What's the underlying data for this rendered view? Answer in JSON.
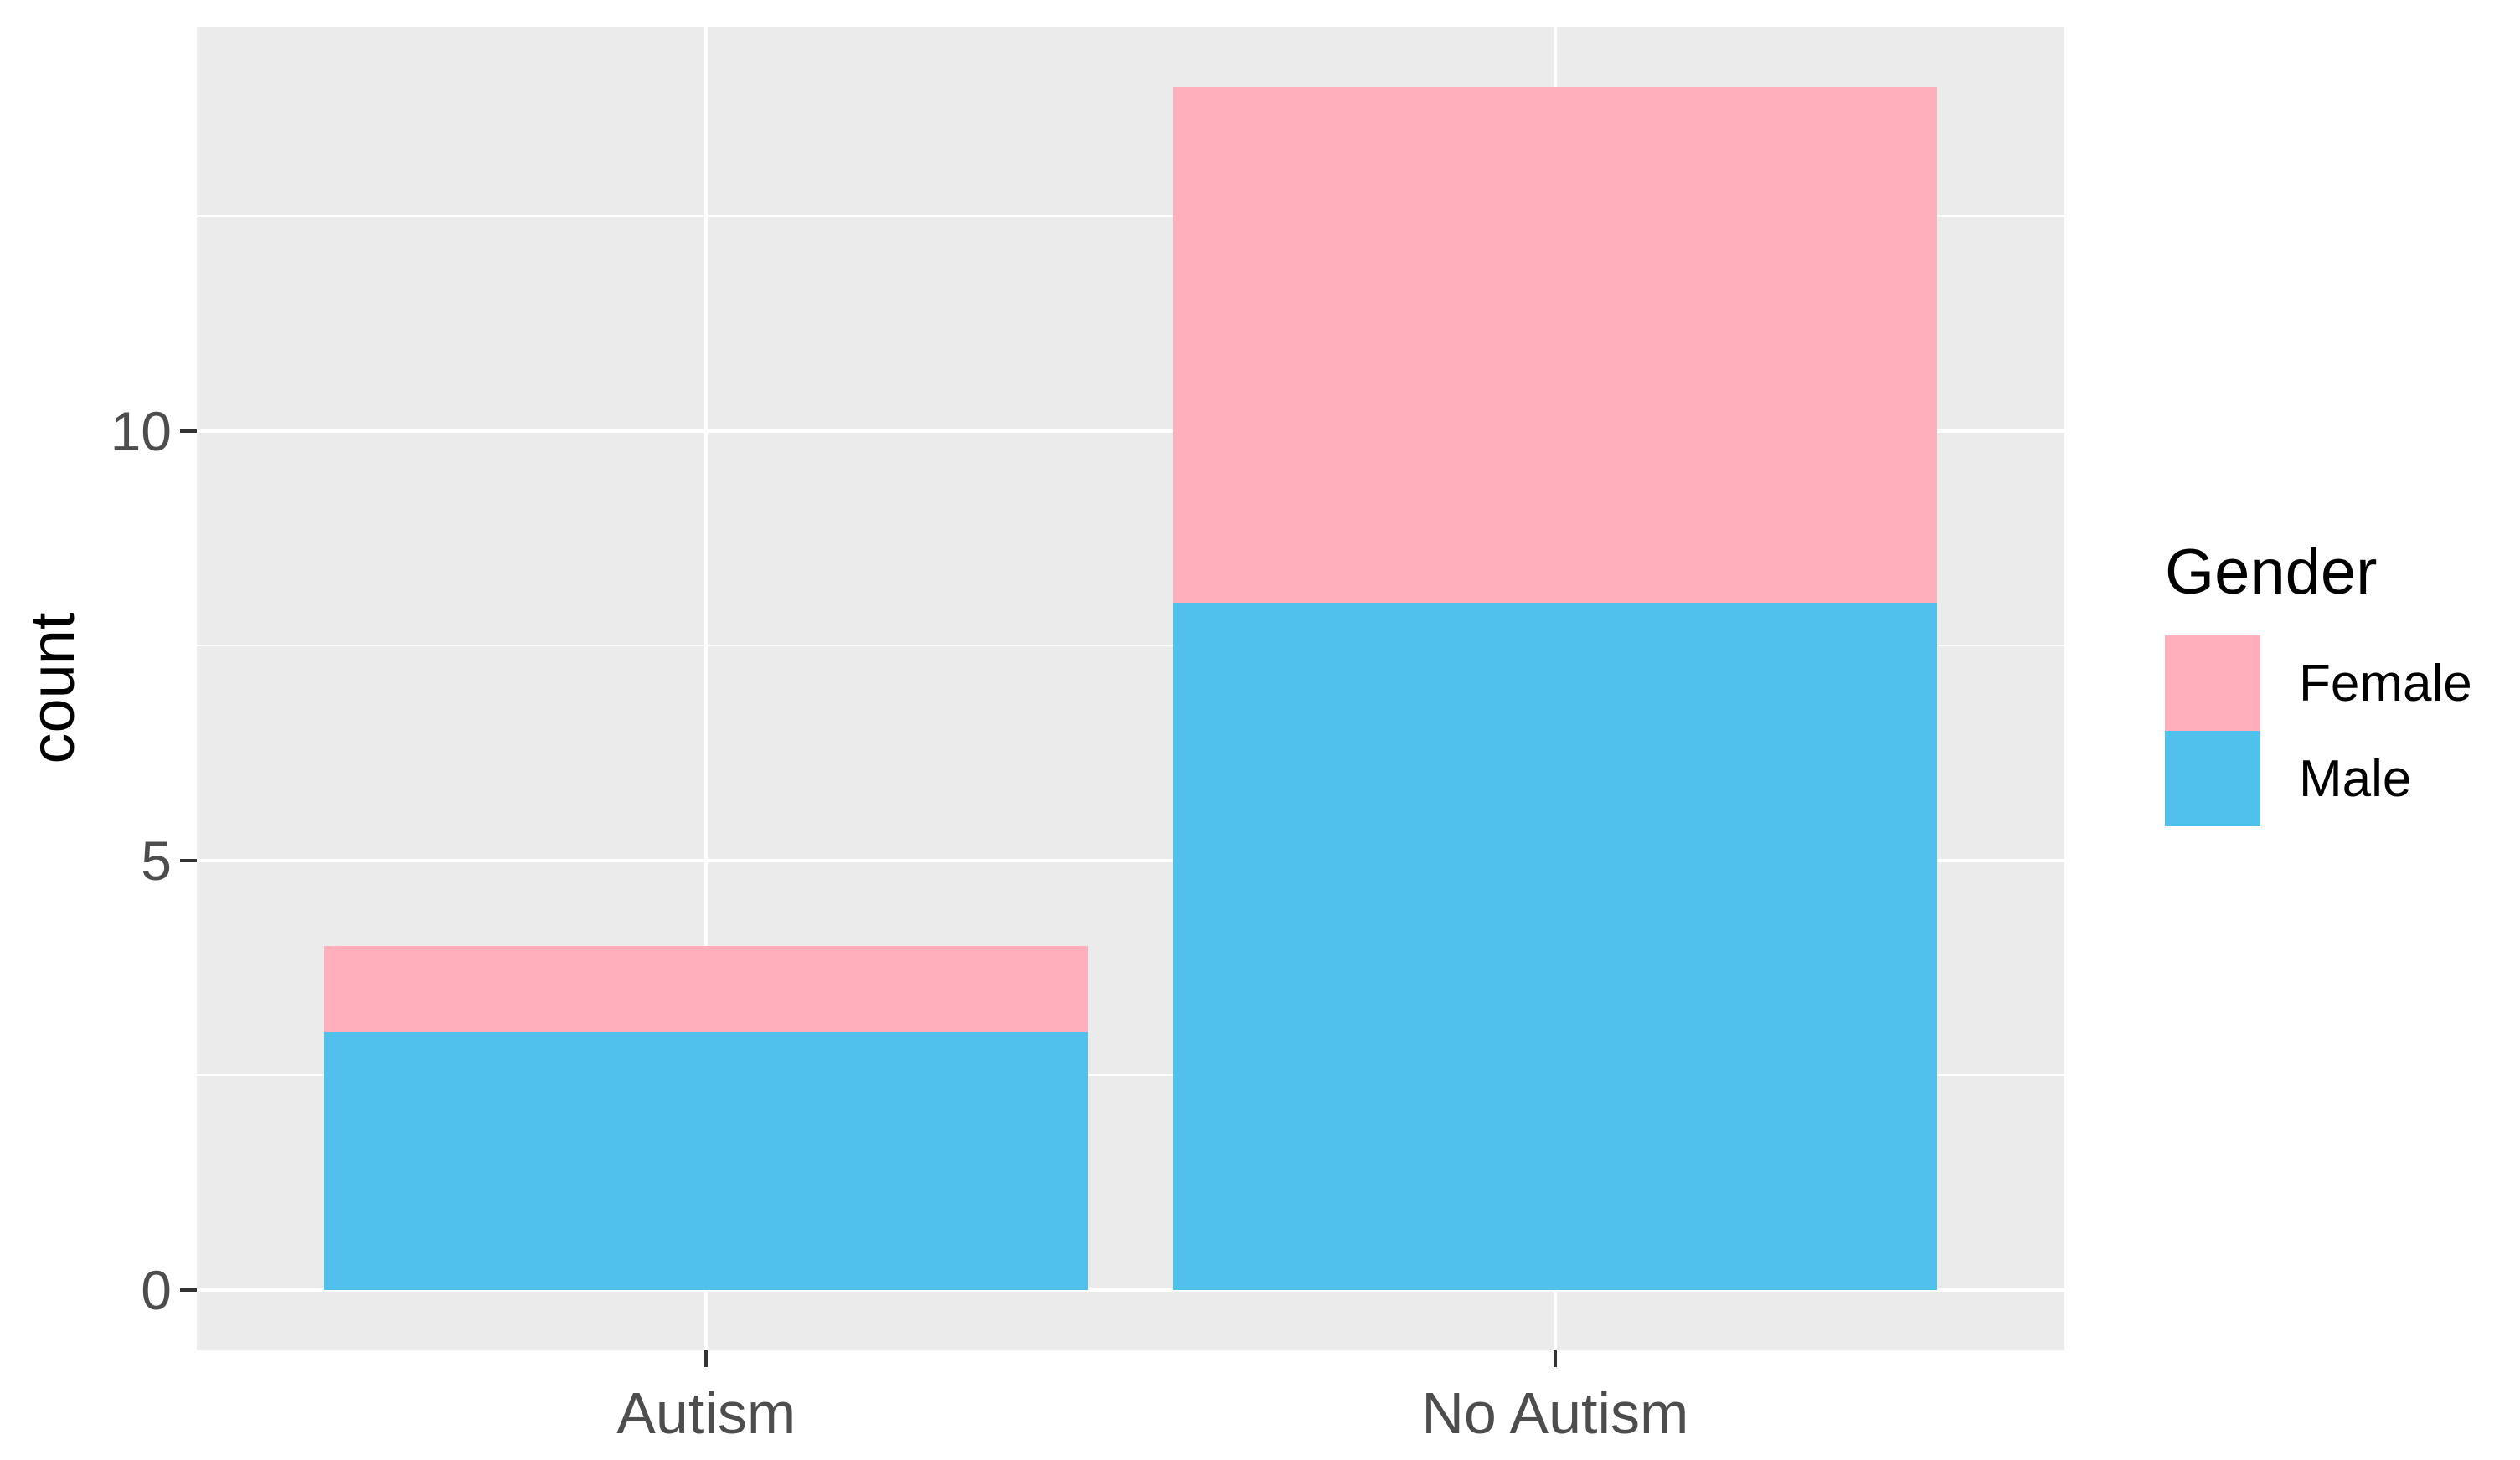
{
  "chart_data": {
    "type": "bar",
    "stacked": true,
    "title": "",
    "categories": [
      "Autism",
      "No Autism"
    ],
    "series": [
      {
        "name": "Female",
        "color": "#FFAFBB",
        "values": [
          1,
          6
        ]
      },
      {
        "name": "Male",
        "color": "#50C1ED",
        "values": [
          3,
          8
        ]
      }
    ],
    "totals": [
      4,
      14
    ],
    "xlabel": "",
    "ylabel": "count",
    "y_ticks": [
      0,
      5,
      10
    ],
    "y_tick_labels": [
      "0",
      "5",
      "10"
    ],
    "y_minor_ticks": [
      2.5,
      7.5,
      12.5
    ],
    "ylim": [
      0,
      14.7
    ],
    "grid": "on",
    "legend_title": "Gender",
    "legend_position": "right",
    "legend_entries": [
      "Female",
      "Male"
    ],
    "panel_background": "#EBEBEB",
    "gridline_color": "#FFFFFF",
    "axis_text_color": "#4D4D4D"
  }
}
